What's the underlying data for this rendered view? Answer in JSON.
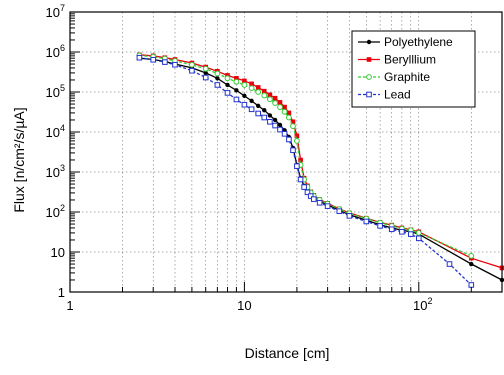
{
  "chart_data": {
    "type": "line",
    "title": "",
    "xlabel": "Distance [cm]",
    "ylabel": "Flux [n/cm²/s/µA]",
    "xscale": "log",
    "yscale": "log",
    "xlim": [
      1,
      300
    ],
    "ylim": [
      1,
      10000000
    ],
    "grid": true,
    "legend_position": "top-right",
    "x_tick_labels": [
      {
        "value": 1,
        "base": "1",
        "exp": ""
      },
      {
        "value": 10,
        "base": "10",
        "exp": ""
      },
      {
        "value": 100,
        "base": "10",
        "exp": "2"
      }
    ],
    "y_tick_labels": [
      {
        "value": 1,
        "base": "1",
        "exp": ""
      },
      {
        "value": 10,
        "base": "10",
        "exp": ""
      },
      {
        "value": 100,
        "base": "10",
        "exp": "2"
      },
      {
        "value": 1000,
        "base": "10",
        "exp": "3"
      },
      {
        "value": 10000,
        "base": "10",
        "exp": "4"
      },
      {
        "value": 100000,
        "base": "10",
        "exp": "5"
      },
      {
        "value": 1000000,
        "base": "10",
        "exp": "6"
      },
      {
        "value": 10000000,
        "base": "10",
        "exp": "7"
      }
    ],
    "series": [
      {
        "name": "Polyethylene",
        "color": "#000000",
        "marker": "circle",
        "dashed": false,
        "x": [
          2.5,
          3,
          3.5,
          4,
          5,
          6,
          7,
          8,
          9,
          10,
          11,
          12,
          13,
          14,
          15,
          16,
          17,
          18,
          19,
          20,
          21,
          22,
          23,
          24,
          25,
          27,
          30,
          35,
          40,
          50,
          60,
          70,
          80,
          90,
          100,
          200,
          300
        ],
        "y": [
          700000,
          650000,
          580000,
          500000,
          400000,
          300000,
          220000,
          150000,
          110000,
          80000,
          60000,
          45000,
          35000,
          26000,
          20000,
          15000,
          11000,
          7500,
          4000,
          1500,
          700,
          450,
          330,
          270,
          230,
          185,
          150,
          110,
          85,
          62,
          48,
          40,
          35,
          32,
          28,
          5,
          2
        ]
      },
      {
        "name": "Berylllium",
        "color": "#e8000b",
        "marker": "square",
        "dashed": false,
        "x": [
          2.5,
          3,
          3.5,
          4,
          5,
          6,
          7,
          8,
          9,
          10,
          11,
          12,
          13,
          14,
          15,
          16,
          17,
          18,
          19,
          20,
          21,
          22,
          23,
          24,
          25,
          27,
          30,
          35,
          40,
          50,
          60,
          70,
          80,
          90,
          100,
          200,
          300
        ],
        "y": [
          850000,
          800000,
          720000,
          650000,
          530000,
          420000,
          330000,
          260000,
          220000,
          190000,
          160000,
          130000,
          105000,
          85000,
          70000,
          55000,
          42000,
          30000,
          18000,
          8000,
          2000,
          700,
          450,
          320,
          260,
          205,
          165,
          120,
          95,
          70,
          55,
          47,
          40,
          36,
          32,
          7,
          4
        ]
      },
      {
        "name": "Graphite",
        "color": "#33cc33",
        "marker": "open-circle",
        "dashed": true,
        "x": [
          2.5,
          3,
          3.5,
          4,
          5,
          6,
          7,
          8,
          9,
          10,
          11,
          12,
          13,
          14,
          15,
          16,
          17,
          18,
          19,
          20,
          21,
          22,
          23,
          24,
          25,
          27,
          30,
          35,
          40,
          50,
          60,
          70,
          80,
          90,
          100,
          200
        ],
        "y": [
          820000,
          760000,
          680000,
          600000,
          480000,
          380000,
          290000,
          220000,
          180000,
          150000,
          125000,
          100000,
          82000,
          66000,
          53000,
          42000,
          32000,
          23000,
          14000,
          6000,
          1500,
          650,
          420,
          310,
          250,
          200,
          160,
          118,
          93,
          68,
          54,
          45,
          38,
          35,
          30,
          8
        ]
      },
      {
        "name": "Lead",
        "color": "#2233cc",
        "marker": "open-square",
        "dashed": true,
        "x": [
          2.5,
          3,
          3.5,
          4,
          5,
          6,
          7,
          8,
          9,
          10,
          11,
          12,
          13,
          14,
          15,
          16,
          17,
          18,
          19,
          20,
          21,
          22,
          23,
          24,
          25,
          27,
          30,
          35,
          40,
          50,
          60,
          70,
          80,
          90,
          100,
          150,
          200
        ],
        "y": [
          720000,
          640000,
          560000,
          480000,
          340000,
          230000,
          150000,
          95000,
          65000,
          48000,
          37000,
          29000,
          23000,
          18000,
          14500,
          11500,
          9000,
          6500,
          3500,
          1400,
          650,
          420,
          310,
          250,
          210,
          170,
          140,
          105,
          80,
          58,
          45,
          37,
          32,
          28,
          22,
          5,
          1.5
        ]
      }
    ]
  }
}
